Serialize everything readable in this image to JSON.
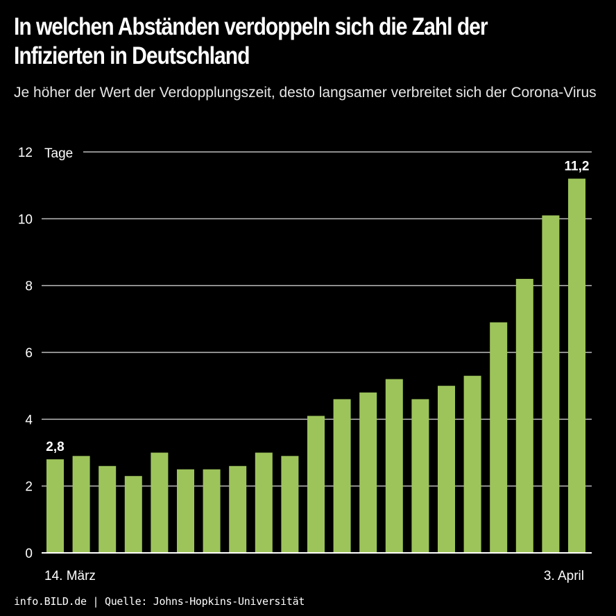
{
  "title": "In welchen Abständen verdoppeln sich die Zahl der Infizierten in Deutschland",
  "title_line1": "In welchen Abständen verdoppeln sich die Zahl der",
  "title_line2": "Infizierten in Deutschland",
  "subtitle": "Je höher der Wert der Verdopplungszeit, desto langsamer verbreitet sich der Corona-Virus",
  "footer": "info.BILD.de | Quelle: Johns-Hopkins-Universität",
  "chart_data": {
    "type": "bar",
    "ylabel": "Tage",
    "ylim": [
      0,
      12
    ],
    "yticks": [
      0,
      2,
      4,
      6,
      8,
      10,
      12
    ],
    "grid": true,
    "bar_color": "#9dc45a",
    "x_first_label": "14. März",
    "x_last_label": "3. April",
    "values": [
      2.8,
      2.9,
      2.6,
      2.3,
      3.0,
      2.5,
      2.5,
      2.6,
      3.0,
      2.9,
      4.1,
      4.6,
      4.8,
      5.2,
      4.6,
      5.0,
      5.3,
      6.9,
      8.2,
      10.1,
      11.2
    ],
    "data_labels": [
      {
        "index": 0,
        "text": "2,8"
      },
      {
        "index": 20,
        "text": "11,2"
      }
    ]
  }
}
